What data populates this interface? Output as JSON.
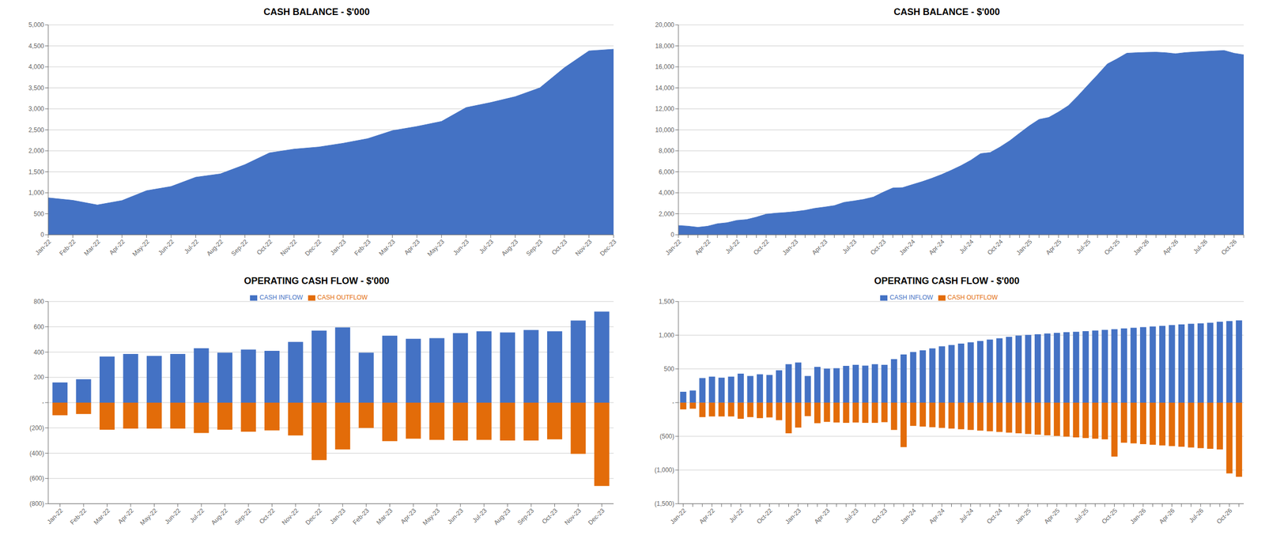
{
  "chart_data": [
    {
      "type": "area",
      "title": "CASH BALANCE - $'000",
      "categories": [
        "Jan-22",
        "Feb-22",
        "Mar-22",
        "Apr-22",
        "May-22",
        "Jun-22",
        "Jul-22",
        "Aug-22",
        "Sep-22",
        "Oct-22",
        "Nov-22",
        "Dec-22",
        "Jan-23",
        "Feb-23",
        "Mar-23",
        "Apr-23",
        "May-23",
        "Jun-23",
        "Jul-23",
        "Aug-23",
        "Sep-23",
        "Oct-23",
        "Nov-23",
        "Dec-23"
      ],
      "values": [
        880,
        820,
        710,
        815,
        1050,
        1150,
        1370,
        1450,
        1670,
        1950,
        2040,
        2090,
        2180,
        2290,
        2480,
        2580,
        2700,
        3030,
        3150,
        3290,
        3500,
        3980,
        4380,
        4420
      ],
      "color": "#4472C4",
      "ylim": [
        0,
        5000
      ],
      "yticks": [
        0,
        500,
        {
          "value": 1000,
          "label": "1,000"
        },
        {
          "value": 1500,
          "label": "1,500"
        },
        {
          "value": 2000,
          "label": "2,000"
        },
        {
          "value": 2500,
          "label": "2,500"
        },
        {
          "value": 3000,
          "label": "3,000"
        },
        {
          "value": 3500,
          "label": "3,500"
        },
        {
          "value": 4000,
          "label": "4,000"
        },
        {
          "value": 4500,
          "label": "4,500"
        },
        {
          "value": 5000,
          "label": "5,000"
        }
      ],
      "grid": true
    },
    {
      "type": "area",
      "title": "CASH BALANCE - $'000",
      "categories": [
        "Jan-22",
        null,
        null,
        "Apr-22",
        null,
        null,
        "Jul-22",
        null,
        null,
        "Oct-22",
        null,
        null,
        "Jan-23",
        null,
        null,
        "Apr-23",
        null,
        null,
        "Jul-23",
        null,
        null,
        "Oct-23",
        null,
        null,
        "Jan-24",
        null,
        null,
        "Apr-24",
        null,
        null,
        "Jul-24",
        null,
        null,
        "Oct-24",
        null,
        null,
        "Jan-25",
        null,
        null,
        "Apr-25",
        null,
        null,
        "Jul-25",
        null,
        null,
        "Oct-25",
        null,
        null,
        "Jan-26",
        null,
        null,
        "Apr-26",
        null,
        null,
        "Jul-26",
        null,
        null,
        "Oct-26",
        null
      ],
      "values": [
        880,
        820,
        710,
        815,
        1050,
        1150,
        1370,
        1450,
        1680,
        1960,
        2060,
        2120,
        2210,
        2330,
        2520,
        2640,
        2780,
        3090,
        3220,
        3370,
        3590,
        4050,
        4460,
        4490,
        4780,
        5060,
        5380,
        5740,
        6150,
        6590,
        7100,
        7730,
        7840,
        8360,
        8960,
        9680,
        10380,
        10990,
        11180,
        11700,
        12300,
        13240,
        14250,
        15240,
        16270,
        16760,
        17300,
        17350,
        17380,
        17400,
        17350,
        17250,
        17360,
        17420,
        17470,
        17520,
        17560,
        17300,
        17150
      ],
      "color": "#4472C4",
      "ylim": [
        0,
        20000
      ],
      "yticks": [
        0,
        {
          "value": 2000,
          "label": "2,000"
        },
        {
          "value": 4000,
          "label": "4,000"
        },
        {
          "value": 6000,
          "label": "6,000"
        },
        {
          "value": 8000,
          "label": "8,000"
        },
        {
          "value": 10000,
          "label": "10,000"
        },
        {
          "value": 12000,
          "label": "12,000"
        },
        {
          "value": 14000,
          "label": "14,000"
        },
        {
          "value": 16000,
          "label": "16,000"
        },
        {
          "value": 18000,
          "label": "18,000"
        },
        {
          "value": 20000,
          "label": "20,000"
        }
      ],
      "grid": true
    },
    {
      "type": "bar",
      "title": "OPERATING CASH FLOW - $'000",
      "categories": [
        "Jan-22",
        "Feb-22",
        "Mar-22",
        "Apr-22",
        "May-22",
        "Jun-22",
        "Jul-22",
        "Aug-22",
        "Sep-22",
        "Oct-22",
        "Nov-22",
        "Dec-22",
        "Jan-23",
        "Feb-23",
        "Mar-23",
        "Apr-23",
        "May-23",
        "Jun-23",
        "Jul-23",
        "Aug-23",
        "Sep-23",
        "Oct-23",
        "Nov-23",
        "Dec-23"
      ],
      "series": [
        {
          "name": "CASH INFLOW",
          "color": "#4472C4",
          "values": [
            160,
            185,
            365,
            385,
            370,
            385,
            430,
            395,
            420,
            410,
            480,
            570,
            595,
            395,
            530,
            505,
            510,
            550,
            565,
            555,
            575,
            565,
            650,
            720
          ]
        },
        {
          "name": "CASH OUTFLOW",
          "color": "#E36C09",
          "values": [
            -100,
            -90,
            -215,
            -205,
            -205,
            -205,
            -240,
            -215,
            -230,
            -220,
            -260,
            -455,
            -370,
            -200,
            -305,
            -285,
            -295,
            -300,
            -295,
            -300,
            -300,
            -290,
            -405,
            -660
          ]
        }
      ],
      "ylim": [
        -800,
        800
      ],
      "yticks": [
        {
          "value": -800,
          "label": "(800)"
        },
        {
          "value": -600,
          "label": "(600)"
        },
        {
          "value": -400,
          "label": "(400)"
        },
        {
          "value": -200,
          "label": "(200)"
        },
        {
          "value": 0,
          "label": "-"
        },
        200,
        400,
        600,
        800
      ],
      "grid": true,
      "legend": "top"
    },
    {
      "type": "bar",
      "title": "OPERATING CASH FLOW - $'000",
      "categories": [
        "Jan-22",
        null,
        null,
        "Apr-22",
        null,
        null,
        "Jul-22",
        null,
        null,
        "Oct-22",
        null,
        null,
        "Jan-23",
        null,
        null,
        "Apr-23",
        null,
        null,
        "Jul-23",
        null,
        null,
        "Oct-23",
        null,
        null,
        "Jan-24",
        null,
        null,
        "Apr-24",
        null,
        null,
        "Jul-24",
        null,
        null,
        "Oct-24",
        null,
        null,
        "Jan-25",
        null,
        null,
        "Apr-25",
        null,
        null,
        "Jul-25",
        null,
        null,
        "Oct-25",
        null,
        null,
        "Jan-26",
        null,
        null,
        "Apr-26",
        null,
        null,
        "Jul-26",
        null,
        null,
        "Oct-26",
        null
      ],
      "series": [
        {
          "name": "CASH INFLOW",
          "color": "#4472C4",
          "values": [
            160,
            180,
            365,
            385,
            370,
            385,
            430,
            395,
            420,
            410,
            480,
            570,
            595,
            395,
            530,
            505,
            510,
            545,
            560,
            550,
            570,
            560,
            645,
            715,
            750,
            775,
            805,
            835,
            855,
            875,
            895,
            915,
            935,
            955,
            975,
            995,
            1005,
            1015,
            1025,
            1035,
            1045,
            1050,
            1060,
            1070,
            1080,
            1090,
            1100,
            1110,
            1120,
            1130,
            1140,
            1150,
            1160,
            1170,
            1175,
            1185,
            1200,
            1210,
            1220
          ]
        },
        {
          "name": "CASH OUTFLOW",
          "color": "#E36C09",
          "values": [
            -100,
            -90,
            -215,
            -205,
            -205,
            -205,
            -240,
            -215,
            -230,
            -220,
            -260,
            -455,
            -370,
            -200,
            -305,
            -285,
            -295,
            -300,
            -295,
            -300,
            -300,
            -290,
            -405,
            -660,
            -345,
            -355,
            -365,
            -375,
            -385,
            -395,
            -405,
            -415,
            -425,
            -435,
            -445,
            -455,
            -465,
            -475,
            -485,
            -495,
            -505,
            -515,
            -525,
            -535,
            -545,
            -800,
            -595,
            -605,
            -615,
            -625,
            -635,
            -645,
            -655,
            -665,
            -675,
            -685,
            -695,
            -1050,
            -1100
          ]
        }
      ],
      "ylim": [
        -1500,
        1500
      ],
      "yticks": [
        {
          "value": -1500,
          "label": "(1,500)"
        },
        {
          "value": -1000,
          "label": "(1,000)"
        },
        {
          "value": -500,
          "label": "(500)"
        },
        {
          "value": 0,
          "label": "-"
        },
        500,
        {
          "value": 1000,
          "label": "1,000"
        },
        {
          "value": 1500,
          "label": "1,500"
        }
      ],
      "grid": true,
      "legend": "top"
    }
  ]
}
